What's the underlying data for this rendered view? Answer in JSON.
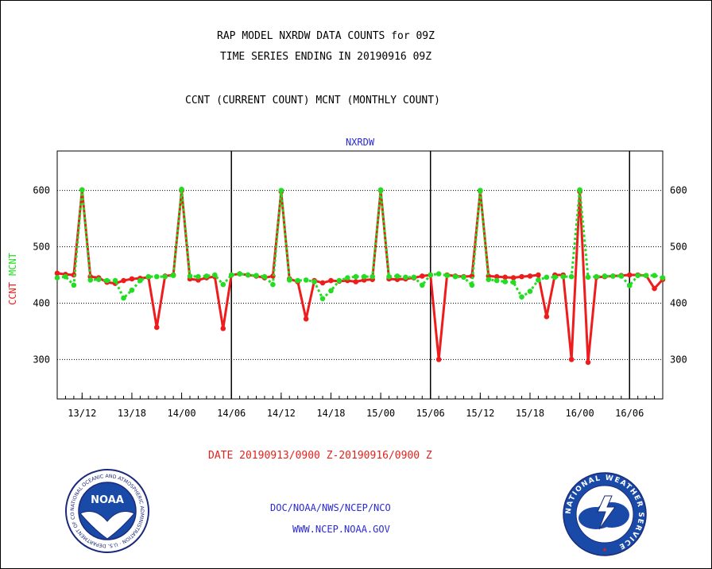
{
  "titles": {
    "line1": "RAP MODEL NXRDW DATA COUNTS for 09Z",
    "line2": "TIME SERIES ENDING IN 20190916 09Z",
    "line3": "CCNT (CURRENT COUNT) MCNT (MONTHLY COUNT)"
  },
  "footer": {
    "date_range": "DATE 20190913/0900 Z-20190916/0900 Z",
    "org": "DOC/NOAA/NWS/NCEP/NCO",
    "url": "WWW.NCEP.NOAA.GOV"
  },
  "logos": {
    "left": {
      "text": "NOAA",
      "ring_text": "NATIONAL OCEANIC AND ATMOSPHERIC ADMINISTRATION · U.S. DEPARTMENT OF COMMERCE",
      "icon": "noaa-logo"
    },
    "right": {
      "ring_text": "NATIONAL WEATHER SERVICE",
      "icon": "nws-logo"
    }
  },
  "colors": {
    "ccnt": "#ee1c1c",
    "mcnt": "#22dd22",
    "title": "#2a2ad0",
    "date": "#e8201a"
  },
  "chart_data": {
    "type": "line",
    "title": "NXRDW",
    "ylabel_parts": [
      {
        "text": "CCNT",
        "series": "CCNT"
      },
      {
        "text": "MCNT",
        "series": "MCNT"
      }
    ],
    "xlabel": "",
    "ylim": [
      230,
      670
    ],
    "yticks": [
      300,
      400,
      500,
      600
    ],
    "grid": "horizontal dotted",
    "x_unit": "hour",
    "xlim": [
      0,
      73
    ],
    "xticks": [
      {
        "x": 3,
        "label": "13/12"
      },
      {
        "x": 9,
        "label": "13/18"
      },
      {
        "x": 15,
        "label": "14/00"
      },
      {
        "x": 21,
        "label": "14/06"
      },
      {
        "x": 27,
        "label": "14/12"
      },
      {
        "x": 33,
        "label": "14/18"
      },
      {
        "x": 39,
        "label": "15/00"
      },
      {
        "x": 45,
        "label": "15/06"
      },
      {
        "x": 51,
        "label": "15/12"
      },
      {
        "x": 57,
        "label": "15/18"
      },
      {
        "x": 63,
        "label": "16/00"
      },
      {
        "x": 69,
        "label": "16/06"
      }
    ],
    "day_boundaries": [
      21,
      45,
      69
    ],
    "series": [
      {
        "name": "CCNT",
        "values": [
          453,
          451,
          450,
          601,
          447,
          445,
          437,
          435,
          440,
          443,
          444,
          446,
          357,
          448,
          450,
          600,
          443,
          441,
          445,
          447,
          355,
          450,
          452,
          450,
          448,
          445,
          448,
          598,
          443,
          438,
          372,
          440,
          436,
          440,
          439,
          440,
          438,
          441,
          442,
          600,
          443,
          442,
          443,
          445,
          448,
          450,
          300,
          450,
          448,
          447,
          448,
          599,
          448,
          447,
          446,
          445,
          447,
          448,
          450,
          376,
          450,
          450,
          300,
          598,
          295,
          446,
          447,
          448,
          449,
          450,
          450,
          449,
          426,
          442
        ]
      },
      {
        "name": "MCNT",
        "values": [
          445,
          447,
          432,
          601,
          441,
          442,
          440,
          440,
          409,
          423,
          440,
          447,
          447,
          447,
          449,
          602,
          448,
          447,
          448,
          450,
          433,
          450,
          452,
          450,
          449,
          447,
          433,
          600,
          441,
          440,
          441,
          438,
          408,
          422,
          440,
          445,
          447,
          447,
          447,
          601,
          447,
          448,
          446,
          446,
          432,
          450,
          452,
          449,
          447,
          446,
          432,
          600,
          442,
          440,
          438,
          437,
          411,
          421,
          441,
          446,
          446,
          447,
          447,
          601,
          446,
          447,
          448,
          448,
          448,
          431,
          449,
          449,
          449,
          445
        ]
      }
    ]
  }
}
